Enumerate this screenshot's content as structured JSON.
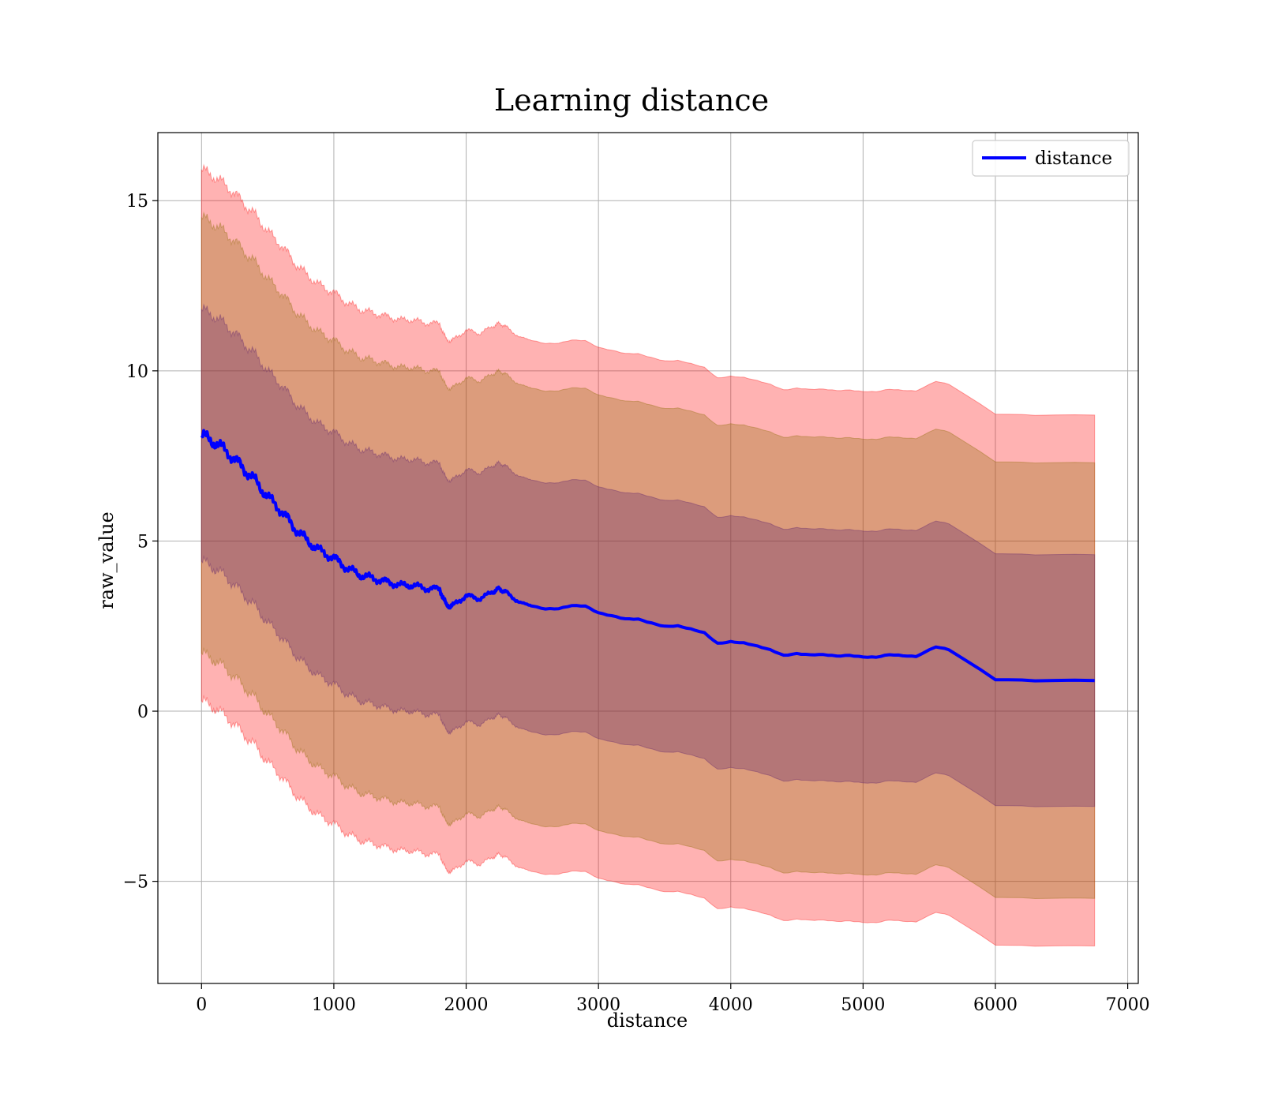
{
  "chart_data": {
    "type": "line",
    "title": "Learning distance",
    "xlabel": "distance",
    "ylabel": "raw_value",
    "xlim": [
      -330,
      7080
    ],
    "ylim": [
      -8,
      17
    ],
    "x_ticks": [
      0,
      1000,
      2000,
      3000,
      4000,
      5000,
      6000,
      7000
    ],
    "y_ticks": [
      -5,
      0,
      5,
      10,
      15
    ],
    "y_tick_labels": [
      "−5",
      "0",
      "5",
      "10",
      "15"
    ],
    "grid": true,
    "legend": {
      "position": "top-right",
      "entries": [
        "distance"
      ]
    },
    "colors": {
      "line": "#0000ff",
      "band_outer": "#ff0000",
      "band_middle": "#8c6a00",
      "band_inner": "#5a1e6e"
    },
    "series": [
      {
        "name": "distance",
        "x": [
          0,
          100,
          200,
          300,
          400,
          500,
          600,
          700,
          800,
          900,
          1000,
          1100,
          1200,
          1300,
          1400,
          1500,
          1600,
          1700,
          1800,
          1850,
          1900,
          2000,
          2100,
          2200,
          2250,
          2300,
          2400,
          2500,
          2600,
          2700,
          2800,
          2900,
          3000,
          3100,
          3200,
          3300,
          3400,
          3500,
          3600,
          3700,
          3800,
          3900,
          4000,
          4100,
          4200,
          4300,
          4400,
          4500,
          4600,
          4700,
          4800,
          4900,
          5000,
          5100,
          5200,
          5300,
          5400,
          5550,
          5650,
          6000,
          6300,
          6750
        ],
        "values": [
          8.1,
          7.9,
          7.6,
          7.2,
          6.8,
          6.3,
          5.9,
          5.4,
          5.0,
          4.7,
          4.5,
          4.2,
          4.0,
          3.9,
          3.8,
          3.7,
          3.7,
          3.6,
          3.6,
          3.1,
          3.1,
          3.4,
          3.3,
          3.5,
          3.6,
          3.5,
          3.2,
          3.1,
          3.0,
          3.0,
          3.1,
          3.1,
          2.9,
          2.8,
          2.7,
          2.7,
          2.6,
          2.5,
          2.5,
          2.4,
          2.3,
          2.0,
          2.05,
          2.0,
          1.9,
          1.8,
          1.65,
          1.7,
          1.65,
          1.65,
          1.62,
          1.65,
          1.6,
          1.58,
          1.65,
          1.63,
          1.62,
          1.9,
          1.8,
          0.92,
          0.9,
          0.92
        ],
        "band_inner_half_width": 3.7,
        "band_middle_half_width": 6.4,
        "band_outer_half_width": 7.8
      }
    ]
  }
}
